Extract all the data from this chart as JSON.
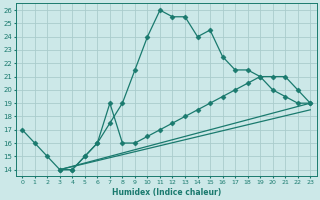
{
  "title": "",
  "xlabel": "Humidex (Indice chaleur)",
  "xlim": [
    -0.5,
    23.5
  ],
  "ylim": [
    13.5,
    26.5
  ],
  "xticks": [
    0,
    1,
    2,
    3,
    4,
    5,
    6,
    7,
    8,
    9,
    10,
    11,
    12,
    13,
    14,
    15,
    16,
    17,
    18,
    19,
    20,
    21,
    22,
    23
  ],
  "yticks": [
    14,
    15,
    16,
    17,
    18,
    19,
    20,
    21,
    22,
    23,
    24,
    25,
    26
  ],
  "bg_color": "#cce8e8",
  "line_color": "#1a7a6e",
  "grid_color": "#b0d0d0",
  "lines": [
    {
      "x": [
        0,
        1,
        2,
        3,
        4,
        5,
        6,
        7,
        8,
        9,
        10,
        11,
        12,
        13,
        14,
        15,
        16,
        17,
        18,
        19,
        20,
        21,
        22,
        23
      ],
      "y": [
        17,
        16,
        15,
        14,
        14,
        15,
        16,
        17.5,
        19,
        21.5,
        24,
        26,
        25.5,
        25.5,
        24,
        24.5,
        22.5,
        21.5,
        21.5,
        21,
        20,
        19.5,
        19,
        19
      ]
    },
    {
      "x": [
        3,
        4,
        5,
        6,
        7,
        8,
        9,
        10,
        11,
        12,
        13,
        14,
        15,
        16,
        17,
        18,
        19,
        20,
        21,
        22,
        23
      ],
      "y": [
        14,
        14,
        15,
        16,
        19,
        16,
        16,
        16.5,
        17,
        17.5,
        18,
        18.5,
        19,
        19.5,
        20,
        20.5,
        21,
        21,
        21,
        20,
        19
      ]
    },
    {
      "x": [
        3,
        23
      ],
      "y": [
        14,
        19
      ]
    },
    {
      "x": [
        3,
        23
      ],
      "y": [
        14,
        18.5
      ]
    }
  ],
  "marker": "D",
  "markersize": 2.5,
  "linewidth": 0.9
}
